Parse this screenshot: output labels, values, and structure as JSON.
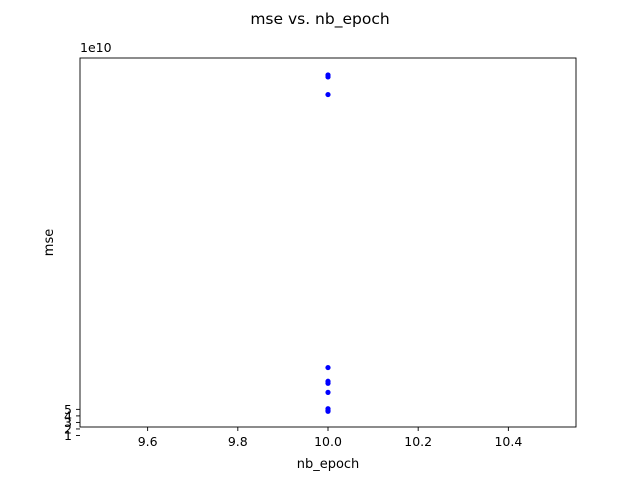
{
  "chart_data": {
    "type": "scatter",
    "title": "mse vs. nb_epoch",
    "xlabel": "nb_epoch",
    "ylabel": "mse",
    "y_offset_label": "1e10",
    "y_scale_factor": 10000000000,
    "xlim": [
      9.45,
      10.55
    ],
    "ylim": [
      2.3,
      58.8
    ],
    "x_ticks": [
      9.6,
      9.8,
      10.0,
      10.2,
      10.4
    ],
    "x_tick_labels": [
      "9.6",
      "9.8",
      "10.0",
      "10.2",
      "10.4"
    ],
    "y_ticks": [
      1,
      2,
      3,
      4,
      5
    ],
    "y_tick_labels": [
      "1",
      "2",
      "3",
      "4",
      "5"
    ],
    "grid": false,
    "marker_color": "#0000ff",
    "series": [
      {
        "x": [
          10.0,
          10.0,
          10.0,
          10.0,
          10.0,
          10.0,
          10.0,
          10.0,
          10.0,
          10.0
        ],
        "y": [
          56.2,
          55.9,
          53.2,
          11.4,
          9.3,
          9.0,
          7.6,
          5.1,
          4.8,
          4.7
        ]
      }
    ]
  }
}
